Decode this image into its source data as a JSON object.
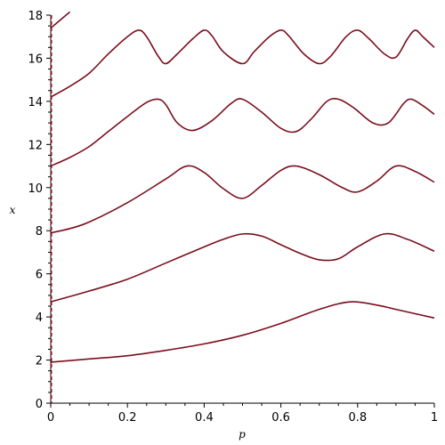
{
  "chart_data": {
    "type": "line",
    "title": "",
    "xlabel": "p",
    "ylabel": "x",
    "xlim": [
      0,
      1
    ],
    "ylim": [
      0,
      18
    ],
    "x_ticks": [
      "0",
      "0.2",
      "0.4",
      "0.6",
      "0.8",
      "1"
    ],
    "y_ticks": [
      "0",
      "2",
      "4",
      "6",
      "8",
      "10",
      "12",
      "14",
      "16",
      "18"
    ],
    "grid": false,
    "legend": "none",
    "line_color": "#7a0f1c",
    "axis_color": "#000000",
    "series": [
      {
        "x": [
          0,
          0.1,
          0.2,
          0.3,
          0.4,
          0.5,
          0.6,
          0.7,
          0.78,
          0.85,
          0.9,
          1.0
        ],
        "y": [
          1.9,
          2.05,
          2.2,
          2.45,
          2.75,
          3.15,
          3.7,
          4.35,
          4.7,
          4.55,
          4.35,
          3.95
        ]
      },
      {
        "x": [
          0,
          0.05,
          0.1,
          0.2,
          0.3,
          0.4,
          0.45,
          0.5,
          0.55,
          0.6,
          0.65,
          0.7,
          0.75,
          0.8,
          0.87,
          0.93,
          1.0
        ],
        "y": [
          4.7,
          4.95,
          5.2,
          5.75,
          6.5,
          7.25,
          7.6,
          7.85,
          7.75,
          7.35,
          6.95,
          6.65,
          6.7,
          7.25,
          7.85,
          7.6,
          7.05
        ]
      },
      {
        "x": [
          0,
          0.05,
          0.1,
          0.2,
          0.3,
          0.355,
          0.4,
          0.45,
          0.5,
          0.55,
          0.6,
          0.64,
          0.7,
          0.76,
          0.8,
          0.85,
          0.9,
          0.95,
          1.0
        ],
        "y": [
          7.9,
          8.1,
          8.4,
          9.3,
          10.4,
          11.0,
          10.7,
          9.95,
          9.5,
          10.1,
          10.8,
          11.0,
          10.6,
          10.0,
          9.8,
          10.3,
          11.0,
          10.75,
          10.25
        ]
      },
      {
        "x": [
          0,
          0.05,
          0.1,
          0.15,
          0.2,
          0.25,
          0.28,
          0.3,
          0.33,
          0.37,
          0.42,
          0.47,
          0.5,
          0.55,
          0.6,
          0.64,
          0.68,
          0.72,
          0.75,
          0.79,
          0.84,
          0.88,
          0.92,
          0.94,
          0.97,
          1.0
        ],
        "y": [
          11.0,
          11.4,
          11.9,
          12.6,
          13.3,
          13.95,
          14.1,
          13.85,
          13.0,
          12.65,
          13.1,
          13.9,
          14.1,
          13.5,
          12.75,
          12.6,
          13.2,
          14.0,
          14.1,
          13.7,
          13.0,
          13.0,
          13.9,
          14.1,
          13.8,
          13.4
        ]
      },
      {
        "x": [
          0,
          0.05,
          0.1,
          0.15,
          0.2,
          0.23,
          0.25,
          0.28,
          0.3,
          0.33,
          0.37,
          0.4,
          0.42,
          0.45,
          0.5,
          0.53,
          0.57,
          0.6,
          0.62,
          0.66,
          0.7,
          0.73,
          0.77,
          0.8,
          0.83,
          0.87,
          0.9,
          0.93,
          0.95,
          0.97,
          1.0
        ],
        "y": [
          14.2,
          14.7,
          15.3,
          16.2,
          17.0,
          17.3,
          17.0,
          16.1,
          15.75,
          16.2,
          16.9,
          17.3,
          17.05,
          16.3,
          15.75,
          16.3,
          17.0,
          17.3,
          17.05,
          16.2,
          15.75,
          16.1,
          17.0,
          17.3,
          16.9,
          16.2,
          16.05,
          16.9,
          17.3,
          17.0,
          16.5
        ]
      },
      {
        "x": [
          0,
          0.02,
          0.04,
          0.05
        ],
        "y": [
          17.4,
          17.7,
          18.0,
          18.15
        ]
      }
    ]
  }
}
